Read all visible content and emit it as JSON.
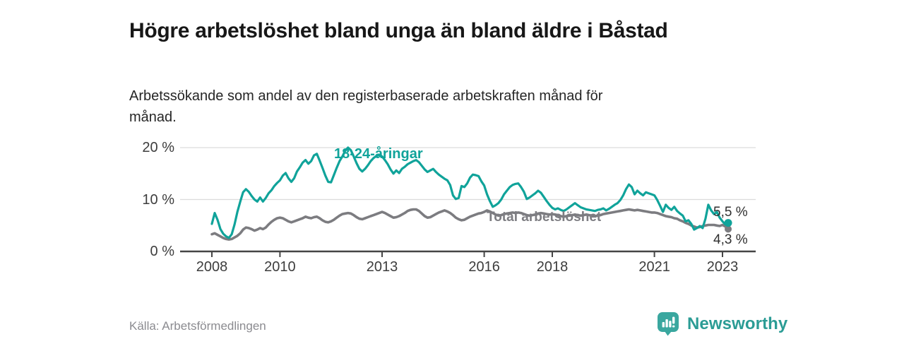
{
  "header": {
    "title": "Högre arbetslöshet bland unga än bland äldre i Båstad",
    "subtitle": "Arbetssökande som andel av den registerbaserade arbetskraften månad för månad."
  },
  "chart_data": {
    "type": "line",
    "unit": "%",
    "frequency": "monthly",
    "x_start_year": 2008,
    "x_end_year": 2023.17,
    "ylim": [
      0,
      21
    ],
    "grid": "horizontal",
    "x_ticks": [
      2008,
      2010,
      2013,
      2016,
      2018,
      2021,
      2023
    ],
    "y_ticks": [
      {
        "value": 0,
        "label": "0 %"
      },
      {
        "value": 10,
        "label": "10 %"
      },
      {
        "value": 20,
        "label": "20 %"
      }
    ],
    "colors": {
      "young": "#10a39a",
      "total": "#7c7c80",
      "grid": "#dcdcdc",
      "axis": "#454545"
    },
    "series": [
      {
        "name": "18-24-åringar",
        "label": "18-24-åringar",
        "color": "#10a39a",
        "end_value": 5.5,
        "end_label": "5,5 %",
        "values": [
          5.3,
          7.4,
          6.1,
          4.3,
          3.4,
          2.9,
          2.6,
          3.3,
          5.2,
          7.6,
          9.6,
          11.4,
          12.0,
          11.5,
          10.7,
          10.0,
          9.6,
          10.4,
          9.6,
          10.3,
          11.2,
          11.8,
          12.6,
          13.2,
          13.7,
          14.6,
          15.1,
          14.1,
          13.4,
          14.1,
          15.4,
          16.2,
          17.1,
          17.6,
          16.9,
          17.4,
          18.5,
          18.8,
          17.5,
          16.1,
          14.6,
          13.4,
          13.3,
          14.7,
          16.1,
          17.4,
          18.3,
          19.4,
          20.0,
          19.5,
          18.3,
          17.0,
          15.9,
          15.4,
          15.9,
          16.6,
          17.4,
          18.0,
          18.4,
          18.6,
          18.3,
          17.6,
          16.8,
          15.8,
          15.0,
          15.6,
          15.1,
          15.9,
          16.3,
          16.8,
          17.1,
          17.4,
          17.6,
          17.2,
          16.5,
          15.8,
          15.3,
          15.6,
          15.9,
          15.3,
          14.8,
          14.4,
          14.0,
          13.7,
          12.8,
          10.8,
          10.1,
          10.3,
          12.6,
          12.4,
          13.1,
          14.2,
          14.8,
          14.7,
          14.5,
          13.5,
          12.7,
          11.0,
          9.7,
          8.6,
          8.9,
          9.3,
          10.0,
          11.0,
          11.7,
          12.4,
          12.8,
          13.0,
          13.1,
          12.4,
          11.5,
          10.1,
          10.4,
          10.8,
          11.2,
          11.7,
          11.3,
          10.5,
          9.7,
          9.0,
          8.4,
          8.1,
          8.3,
          8.0,
          7.8,
          8.1,
          8.5,
          8.9,
          9.3,
          8.9,
          8.5,
          8.3,
          8.1,
          8.0,
          7.9,
          7.8,
          8.0,
          8.1,
          8.3,
          7.9,
          8.2,
          8.6,
          9.0,
          9.3,
          9.9,
          10.8,
          12.0,
          12.9,
          12.4,
          11.0,
          11.7,
          11.2,
          10.8,
          11.4,
          11.2,
          11.0,
          10.8,
          9.9,
          8.8,
          7.6,
          9.0,
          8.4,
          8.0,
          8.6,
          7.8,
          7.3,
          6.9,
          5.8,
          6.0,
          5.3,
          4.2,
          4.5,
          4.9,
          4.5,
          6.3,
          9.0,
          7.9,
          7.2,
          7.6,
          6.5,
          5.8,
          5.2,
          5.5
        ]
      },
      {
        "name": "Total arbetslöshet",
        "label": "Total arbetslöshet",
        "color": "#7c7c80",
        "end_value": 4.3,
        "end_label": "4,3 %",
        "values": [
          3.3,
          3.5,
          3.2,
          2.9,
          2.6,
          2.4,
          2.3,
          2.4,
          2.7,
          3.0,
          3.5,
          4.2,
          4.6,
          4.5,
          4.3,
          4.0,
          4.2,
          4.5,
          4.3,
          4.6,
          5.2,
          5.7,
          6.1,
          6.4,
          6.5,
          6.4,
          6.1,
          5.8,
          5.6,
          5.8,
          6.0,
          6.2,
          6.4,
          6.7,
          6.5,
          6.4,
          6.6,
          6.7,
          6.4,
          6.0,
          5.7,
          5.6,
          5.8,
          6.1,
          6.5,
          6.9,
          7.2,
          7.3,
          7.4,
          7.3,
          7.0,
          6.6,
          6.3,
          6.2,
          6.4,
          6.6,
          6.8,
          7.0,
          7.2,
          7.4,
          7.6,
          7.4,
          7.1,
          6.8,
          6.5,
          6.6,
          6.8,
          7.1,
          7.4,
          7.8,
          8.0,
          8.1,
          8.1,
          7.8,
          7.3,
          6.8,
          6.5,
          6.6,
          6.9,
          7.2,
          7.5,
          7.7,
          7.9,
          7.7,
          7.4,
          7.0,
          6.5,
          6.2,
          6.0,
          6.1,
          6.4,
          6.7,
          6.9,
          7.1,
          7.3,
          7.4,
          7.6,
          7.9,
          7.7,
          7.4,
          7.1,
          6.9,
          7.0,
          7.2,
          7.3,
          7.4,
          7.5,
          7.4,
          7.5,
          7.4,
          7.2,
          7.0,
          6.9,
          7.0,
          7.1,
          7.3,
          7.4,
          7.3,
          7.2,
          7.1,
          7.2,
          7.1,
          7.0,
          6.8,
          6.7,
          6.8,
          6.9,
          7.0,
          7.1,
          7.0,
          6.9,
          7.0,
          7.1,
          7.0,
          6.9,
          6.8,
          6.9,
          7.0,
          7.2,
          7.3,
          7.4,
          7.5,
          7.6,
          7.7,
          7.8,
          7.9,
          8.0,
          8.1,
          8.0,
          7.9,
          8.0,
          7.9,
          7.8,
          7.7,
          7.6,
          7.5,
          7.5,
          7.4,
          7.2,
          7.0,
          6.8,
          6.7,
          6.6,
          6.4,
          6.3,
          6.0,
          5.8,
          5.5,
          5.3,
          5.0,
          4.8,
          4.6,
          4.7,
          4.9,
          5.0,
          5.1,
          5.1,
          5.1,
          5.0,
          4.9,
          5.1,
          4.8,
          4.3
        ]
      }
    ]
  },
  "source": {
    "label": "Källa: Arbetsförmedlingen"
  },
  "branding": {
    "name": "Newsworthy",
    "logo_icon": "bar-chart-speech-bubble-icon",
    "color": "#3aa79f"
  }
}
